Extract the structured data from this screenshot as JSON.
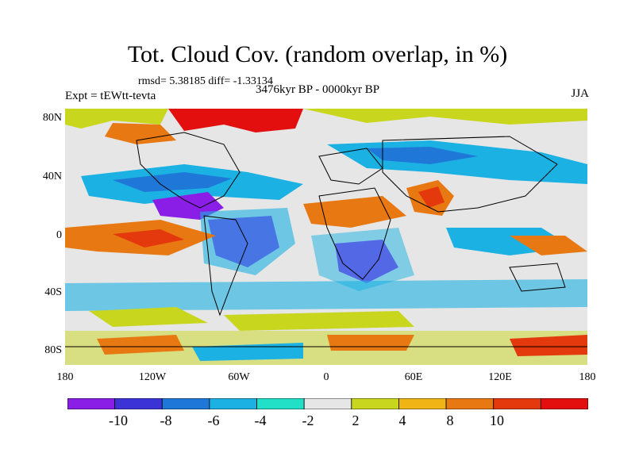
{
  "title": "Tot. Cloud Cov. (random overlap, in %)",
  "stats": "rmsd= 5.38185 diff= -1.33134",
  "experiment": "Expt = tEWtt-tevta",
  "period": "3476kyr BP - 0000kyr BP",
  "season": "JJA",
  "lat_labels": [
    "80N",
    "40N",
    "0",
    "40S",
    "80S"
  ],
  "lon_labels": [
    "180",
    "120W",
    "60W",
    "0",
    "60E",
    "120E",
    "180"
  ],
  "colorbar": {
    "labels": [
      "-10",
      "-8",
      "-6",
      "-4",
      "-2",
      "2",
      "4",
      "8",
      "10"
    ],
    "colors": [
      "#8a1ee6",
      "#3c33d6",
      "#1f78d8",
      "#1bb1e3",
      "#22e0c8",
      "#e6e6e6",
      "#c8d71e",
      "#f0b414",
      "#e87812",
      "#e3390c",
      "#e30e0e"
    ]
  }
}
